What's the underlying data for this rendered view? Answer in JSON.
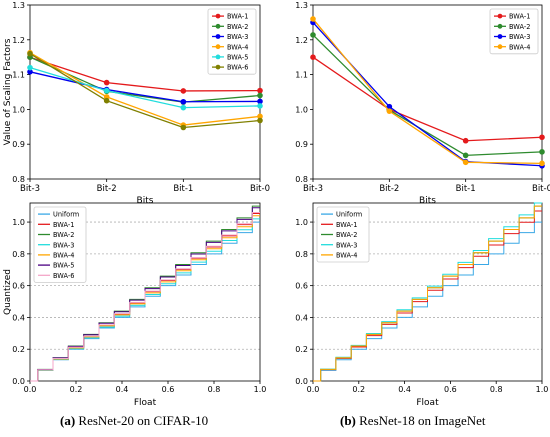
{
  "captions": [
    {
      "letter": "(a)",
      "text": "ResNet-20 on CIFAR-10"
    },
    {
      "letter": "(b)",
      "text": "ResNet-18 on ImageNet"
    }
  ],
  "chart_data": [
    {
      "id": "tl",
      "type": "line",
      "xlabel": "Bits",
      "ylabel": "Value of Scaling Factors",
      "categories": [
        "Bit-3",
        "Bit-2",
        "Bit-1",
        "Bit-0"
      ],
      "ylim": [
        0.8,
        1.3
      ],
      "yticks": [
        "0.8",
        "0.9",
        "1.0",
        "1.1",
        "1.2",
        "1.3"
      ],
      "grid": false,
      "legend": "top-right",
      "series": [
        {
          "name": "BWA-1",
          "color": "#e41a1c",
          "values": [
            1.15,
            1.077,
            1.053,
            1.054
          ]
        },
        {
          "name": "BWA-2",
          "color": "#2e8b2e",
          "values": [
            1.15,
            1.052,
            1.021,
            1.04
          ]
        },
        {
          "name": "BWA-3",
          "color": "#0000ee",
          "values": [
            1.108,
            1.057,
            1.022,
            1.023
          ]
        },
        {
          "name": "BWA-4",
          "color": "#ffa500",
          "values": [
            1.163,
            1.036,
            0.955,
            0.98
          ]
        },
        {
          "name": "BWA-5",
          "color": "#22dddd",
          "values": [
            1.12,
            1.054,
            1.005,
            1.01
          ]
        },
        {
          "name": "BWA-6",
          "color": "#808000",
          "values": [
            1.16,
            1.025,
            0.948,
            0.968
          ]
        }
      ]
    },
    {
      "id": "tr",
      "type": "line",
      "xlabel": "Bits",
      "ylabel": "",
      "categories": [
        "Bit-3",
        "Bit-2",
        "Bit-1",
        "Bit-0"
      ],
      "ylim": [
        0.8,
        1.3
      ],
      "yticks": [
        "0.8",
        "0.9",
        "1.0",
        "1.1",
        "1.2",
        "1.3"
      ],
      "grid": false,
      "legend": "top-right",
      "series": [
        {
          "name": "BWA-1",
          "color": "#e41a1c",
          "values": [
            1.15,
            1.0,
            0.91,
            0.92
          ]
        },
        {
          "name": "BWA-2",
          "color": "#2e8b2e",
          "values": [
            1.214,
            0.998,
            0.868,
            0.878
          ]
        },
        {
          "name": "BWA-3",
          "color": "#0000ee",
          "values": [
            1.25,
            1.008,
            0.85,
            0.838
          ]
        },
        {
          "name": "BWA-4",
          "color": "#ffa500",
          "values": [
            1.26,
            0.995,
            0.848,
            0.845
          ]
        }
      ]
    },
    {
      "id": "bl",
      "type": "line",
      "subtype": "step",
      "xlabel": "Float",
      "ylabel": "Quantized",
      "xlim": [
        0,
        1.0
      ],
      "ylim": [
        0,
        1.12
      ],
      "xticks": [
        "0.0",
        "0.2",
        "0.4",
        "0.6",
        "0.8",
        "1.0"
      ],
      "yticks": [
        "0.0",
        "0.2",
        "0.4",
        "0.6",
        "0.8",
        "1.0"
      ],
      "grid": "horizontal-dashed",
      "legend": "top-left",
      "levels": 15,
      "series": [
        {
          "name": "Uniform",
          "color": "#3aa8e6",
          "scale": 1.0
        },
        {
          "name": "BWA-1",
          "color": "#e41a1c",
          "scale": 1.054
        },
        {
          "name": "BWA-2",
          "color": "#2e8b2e",
          "scale": 1.1
        },
        {
          "name": "BWA-3",
          "color": "#22dddd",
          "scale": 1.02
        },
        {
          "name": "BWA-4",
          "color": "#ffa500",
          "scale": 1.04
        },
        {
          "name": "BWA-5",
          "color": "#4b0082",
          "scale": 1.09
        },
        {
          "name": "BWA-6",
          "color": "#f4a6c8",
          "scale": 1.06
        }
      ]
    },
    {
      "id": "br",
      "type": "line",
      "subtype": "step",
      "xlabel": "Float",
      "ylabel": "",
      "xlim": [
        0,
        1.0
      ],
      "ylim": [
        0,
        1.12
      ],
      "xticks": [
        "0.0",
        "0.2",
        "0.4",
        "0.6",
        "0.8",
        "1.0"
      ],
      "yticks": [
        "0.0",
        "0.2",
        "0.4",
        "0.6",
        "0.8",
        "1.0"
      ],
      "grid": "horizontal-dashed",
      "legend": "top-left",
      "levels": 15,
      "series": [
        {
          "name": "Uniform",
          "color": "#3aa8e6",
          "scale": 1.0
        },
        {
          "name": "BWA-1",
          "color": "#e41a1c",
          "scale": 1.07
        },
        {
          "name": "BWA-2",
          "color": "#2e8b2e",
          "scale": 1.1
        },
        {
          "name": "BWA-3",
          "color": "#22dddd",
          "scale": 1.12
        },
        {
          "name": "BWA-4",
          "color": "#ffa500",
          "scale": 1.1
        }
      ]
    }
  ]
}
